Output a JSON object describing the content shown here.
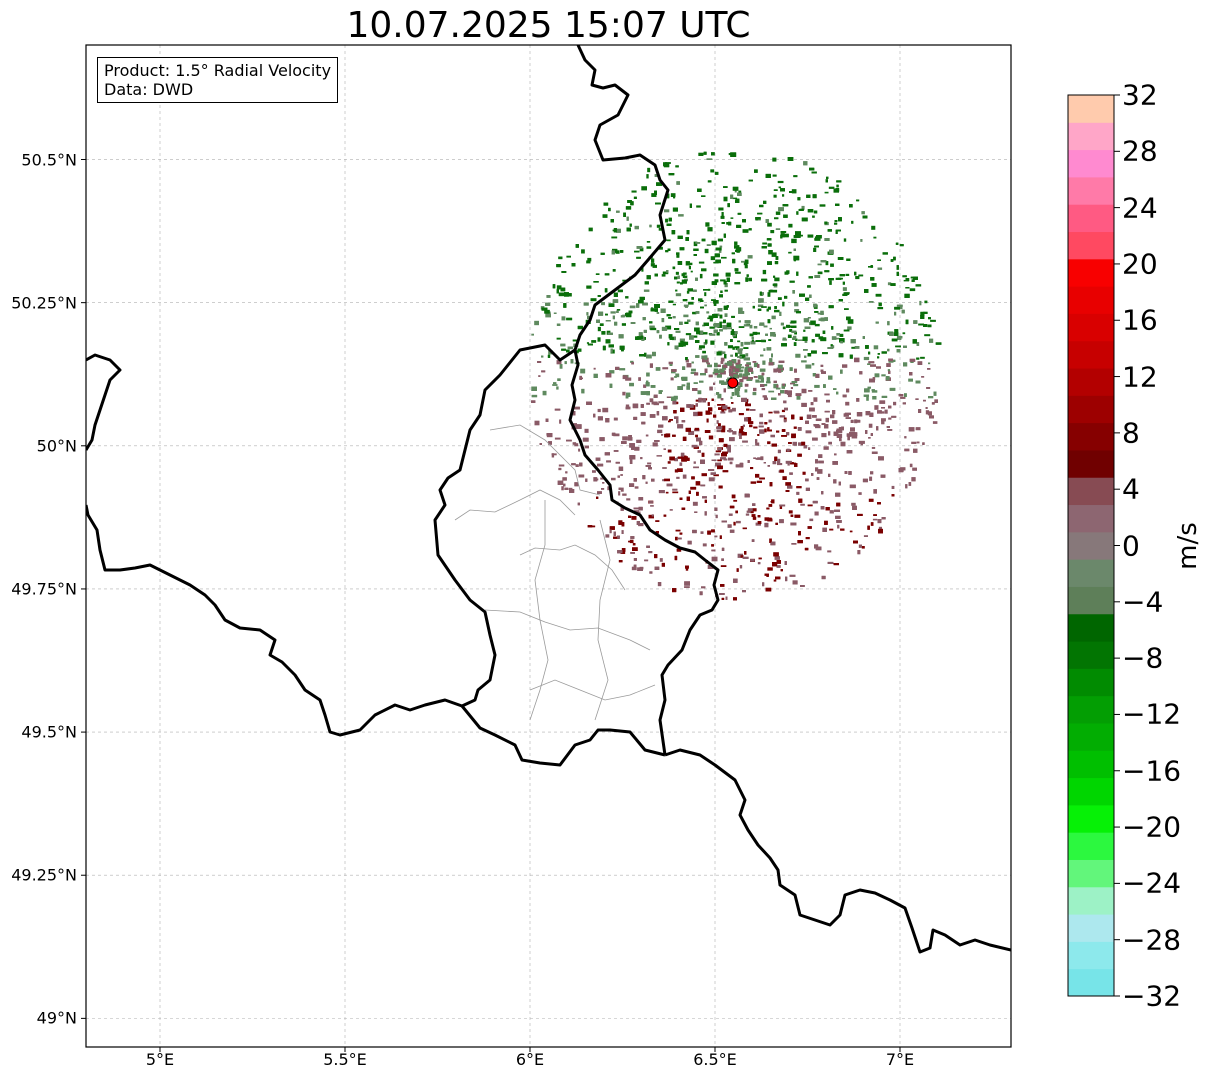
{
  "title": "10.07.2025 15:07 UTC",
  "info_box": {
    "product": "Product: 1.5° Radial Velocity",
    "data_source": "Data: DWD"
  },
  "map": {
    "lon_range": [
      4.8,
      7.3
    ],
    "lat_range": [
      48.95,
      50.7
    ],
    "lon_ticks": [
      "5°E",
      "5.5°E",
      "6°E",
      "6.5°E",
      "7°E"
    ],
    "lat_ticks": [
      "50.5°N",
      "50.25°N",
      "50°N",
      "49.75°N",
      "49.5°N",
      "49.25°N",
      "49°N"
    ],
    "gridlines": true,
    "radar_site": {
      "lon": 6.548,
      "lat": 50.11,
      "marker_color": "#ff0000"
    },
    "echo_colors": {
      "strong_inbound": "#0a6e0a",
      "weak_inbound": "#5f8a5f",
      "weak_outbound": "#8a5a66",
      "strong_outbound": "#7a0000"
    }
  },
  "colorbar": {
    "unit": "m/s",
    "min": -32,
    "max": 32,
    "tick_labels": [
      "32",
      "28",
      "24",
      "20",
      "16",
      "12",
      "8",
      "4",
      "0",
      "−4",
      "−8",
      "−12",
      "−16",
      "−20",
      "−24",
      "−28",
      "−32"
    ],
    "colors_bottom_to_top": [
      "#77e4e8",
      "#8de9ec",
      "#ade8ee",
      "#9df2c6",
      "#62f67b",
      "#2cf83f",
      "#06f106",
      "#00d600",
      "#00bf00",
      "#02ad02",
      "#039e03",
      "#018b01",
      "#027502",
      "#006600",
      "#5e7f59",
      "#6b886b",
      "#87787a",
      "#8d6671",
      "#874b53",
      "#700000",
      "#860000",
      "#9d0000",
      "#b30000",
      "#c70000",
      "#d90000",
      "#e80000",
      "#f80000",
      "#ff4961",
      "#ff5a83",
      "#ff7aa8",
      "#ff8ad0",
      "#ffa6c8",
      "#ffcbad"
    ]
  }
}
